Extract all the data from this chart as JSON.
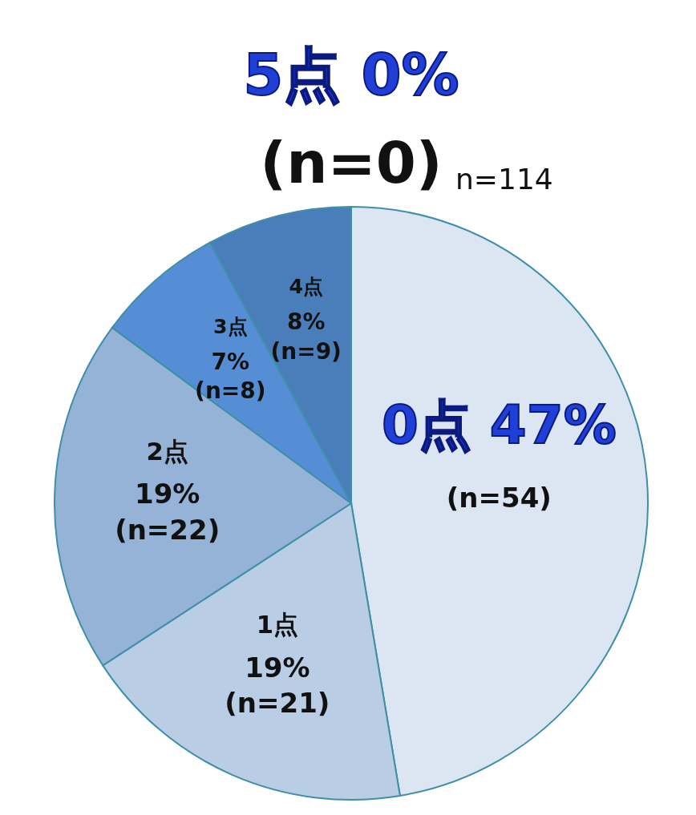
{
  "chart_data": {
    "type": "pie",
    "subtitle": "n=114",
    "categories": [
      "0点",
      "1点",
      "2点",
      "3点",
      "4点",
      "5点"
    ],
    "values": [
      54,
      21,
      22,
      8,
      9,
      0
    ],
    "value_labels": [
      "47%\n(n=54)",
      "19%\n(n=21)",
      "19%\n(n=22)",
      "7%\n(n=8)",
      "8%\n(n=9)",
      "0%\n(n=0)"
    ],
    "colors": [
      "#dce6f2",
      "#b9cde5",
      "#95b3d7",
      "#558ed5",
      "#4a7ebb",
      "#2f5597"
    ],
    "legend": false
  }
}
